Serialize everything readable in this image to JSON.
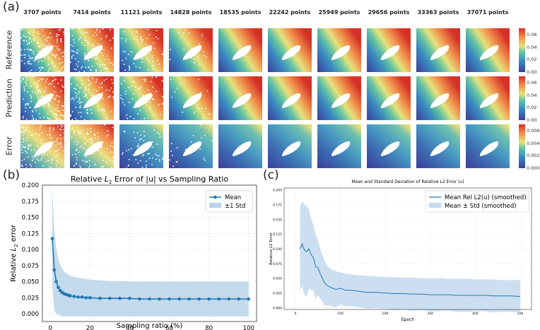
{
  "panels": {
    "a": "(a)",
    "b": "(b)",
    "c": "(c)"
  },
  "grid": {
    "point_counts": [
      "3707 points",
      "7414 points",
      "11121 points",
      "14828 points",
      "18535 points",
      "22242 points",
      "25949 points",
      "29656 points",
      "33363 points",
      "37071 points"
    ],
    "rows": [
      "Reference",
      "Prediction",
      "Error"
    ],
    "colorbars": [
      {
        "ticks": [
          "0.06",
          "0.04",
          "0.02",
          "0.00"
        ],
        "range": [
          0,
          0.07
        ]
      },
      {
        "ticks": [
          "0.06",
          "0.04",
          "0.02",
          "0.00"
        ],
        "range": [
          0,
          0.07
        ]
      },
      {
        "ticks": [
          "0.006",
          "0.004",
          "0.002",
          "0.000"
        ],
        "range": [
          0,
          0.007
        ]
      }
    ],
    "colors": {
      "low": "#3b4cc0",
      "mid": "#e8e27a",
      "high": "#d73027"
    }
  },
  "chart_data": [
    {
      "type": "line",
      "title": "Relative L2 Error of |u| vs Sampling Ratio",
      "title_parts": {
        "pre": "Relative ",
        "sym": "L",
        "sub": "2",
        "post": " Error of |u| vs Sampling Ratio"
      },
      "xlabel": "Sampling ratio (%)",
      "ylabel_parts": {
        "pre": "Relative ",
        "sym": "L",
        "sub": "2",
        "post": " error"
      },
      "xlim": [
        -4,
        104
      ],
      "ylim": [
        -0.012,
        0.2
      ],
      "xticks": [
        0,
        20,
        40,
        60,
        80,
        100
      ],
      "yticks": [
        0.0,
        0.025,
        0.05,
        0.075,
        0.1,
        0.125,
        0.15,
        0.175,
        0.2
      ],
      "ytick_labels": [
        "0.000",
        "0.025",
        "0.050",
        "0.075",
        "0.100",
        "0.125",
        "0.150",
        "0.175",
        "0.200"
      ],
      "xtick_labels": [
        "0",
        "20",
        "40",
        "60",
        "80",
        "100"
      ],
      "legend": [
        "Mean",
        "±1 Std"
      ],
      "grid": true,
      "color": "#1f77b4",
      "band_color": "#b9d3ea",
      "series": [
        {
          "name": "Mean",
          "x": [
            1,
            2,
            3,
            4,
            5,
            6,
            7,
            8,
            9,
            10,
            12,
            14,
            16,
            18,
            20,
            25,
            30,
            35,
            40,
            45,
            50,
            55,
            60,
            65,
            70,
            75,
            80,
            85,
            90,
            95,
            100
          ],
          "values": [
            0.117,
            0.068,
            0.05,
            0.041,
            0.036,
            0.033,
            0.031,
            0.03,
            0.029,
            0.028,
            0.027,
            0.026,
            0.026,
            0.025,
            0.025,
            0.024,
            0.024,
            0.024,
            0.024,
            0.023,
            0.023,
            0.023,
            0.023,
            0.023,
            0.023,
            0.023,
            0.023,
            0.023,
            0.023,
            0.023,
            0.023
          ],
          "upper": [
            0.195,
            0.13,
            0.1,
            0.085,
            0.076,
            0.07,
            0.066,
            0.063,
            0.061,
            0.059,
            0.057,
            0.056,
            0.055,
            0.054,
            0.053,
            0.052,
            0.051,
            0.051,
            0.05,
            0.05,
            0.05,
            0.05,
            0.05,
            0.05,
            0.05,
            0.05,
            0.05,
            0.05,
            0.05,
            0.05,
            0.05
          ],
          "lower": [
            0.04,
            0.006,
            0.0,
            -0.002,
            -0.003,
            -0.004,
            -0.004,
            -0.004,
            -0.004,
            -0.004,
            -0.004,
            -0.004,
            -0.004,
            -0.004,
            -0.004,
            -0.004,
            -0.004,
            -0.004,
            -0.004,
            -0.004,
            -0.004,
            -0.004,
            -0.004,
            -0.004,
            -0.004,
            -0.004,
            -0.004,
            -0.004,
            -0.004,
            -0.004,
            -0.004
          ]
        }
      ]
    },
    {
      "type": "line",
      "title": "Mean and Standard Deviation of Relative L2 Error (u)",
      "xlabel": "Epoch",
      "ylabel": "Relative L2 Error",
      "xlim": [
        -25,
        525
      ],
      "ylim": [
        -0.003,
        0.203
      ],
      "xticks": [
        0,
        100,
        200,
        300,
        400,
        500
      ],
      "xtick_labels": [
        "0",
        "100",
        "200",
        "300",
        "400",
        "500"
      ],
      "yticks": [
        0.0,
        0.025,
        0.05,
        0.075,
        0.1,
        0.125,
        0.15,
        0.175,
        0.2
      ],
      "ytick_labels": [
        "0.000",
        "0.025",
        "0.050",
        "0.075",
        "0.100",
        "0.125",
        "0.150",
        "0.175",
        "0.200"
      ],
      "legend": [
        "Mean Rel L2(u) (smoothed)",
        "Mean ± Std (smoothed)"
      ],
      "grid": true,
      "color": "#1f77b4",
      "band_color": "#c6dbef",
      "series": [
        {
          "name": "Mean Rel L2(u) (smoothed)",
          "x": [
            10,
            15,
            20,
            25,
            30,
            35,
            40,
            45,
            50,
            55,
            60,
            65,
            70,
            75,
            80,
            90,
            100,
            110,
            120,
            140,
            160,
            180,
            200,
            220,
            240,
            260,
            280,
            300,
            320,
            340,
            360,
            380,
            400,
            420,
            440,
            460,
            480,
            500
          ],
          "values": [
            0.1,
            0.108,
            0.098,
            0.095,
            0.1,
            0.09,
            0.085,
            0.07,
            0.068,
            0.058,
            0.05,
            0.042,
            0.038,
            0.036,
            0.034,
            0.031,
            0.033,
            0.03,
            0.03,
            0.028,
            0.026,
            0.026,
            0.025,
            0.024,
            0.024,
            0.023,
            0.023,
            0.022,
            0.022,
            0.022,
            0.021,
            0.021,
            0.021,
            0.021,
            0.02,
            0.02,
            0.02,
            0.019
          ],
          "upper": [
            0.17,
            0.18,
            0.175,
            0.172,
            0.168,
            0.15,
            0.14,
            0.125,
            0.115,
            0.1,
            0.09,
            0.08,
            0.072,
            0.068,
            0.065,
            0.062,
            0.06,
            0.058,
            0.057,
            0.055,
            0.054,
            0.053,
            0.052,
            0.052,
            0.051,
            0.051,
            0.05,
            0.05,
            0.05,
            0.049,
            0.049,
            0.049,
            0.048,
            0.048,
            0.048,
            0.047,
            0.047,
            0.047
          ],
          "lower": [
            0.03,
            0.036,
            0.022,
            0.018,
            0.032,
            0.03,
            0.03,
            0.015,
            0.021,
            0.016,
            0.01,
            0.004,
            0.004,
            0.004,
            0.003,
            0.0,
            0.006,
            0.002,
            0.003,
            0.001,
            -0.002,
            -0.001,
            -0.002,
            -0.004,
            -0.003,
            -0.005,
            -0.004,
            -0.006,
            -0.006,
            -0.005,
            -0.007,
            -0.007,
            -0.006,
            -0.006,
            -0.008,
            -0.007,
            -0.007,
            -0.009
          ]
        }
      ]
    }
  ]
}
